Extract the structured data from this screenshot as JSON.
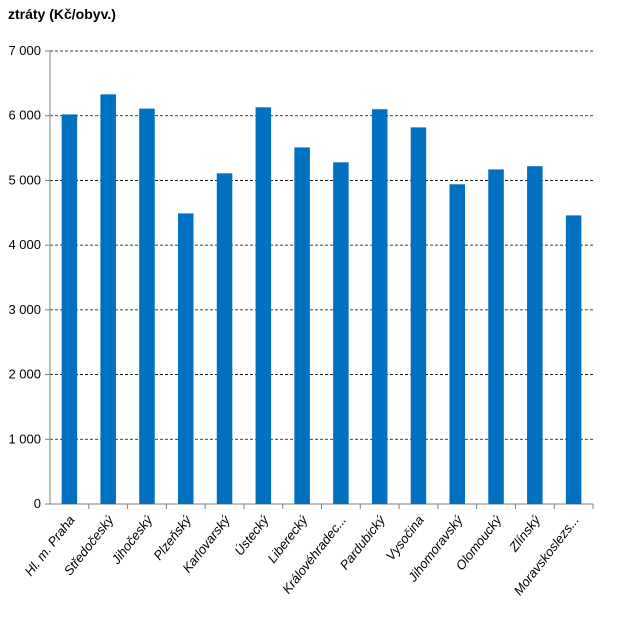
{
  "chart_data": {
    "type": "bar",
    "ylabel": "ztráty (Kč/obyv.)",
    "xlabel": "",
    "categories": [
      "Hl. m. Praha",
      "Středočeský",
      "Jihočeský",
      "Plzeňský",
      "Karlovarský",
      "Ústecký",
      "Liberecký",
      "Královéhradec...",
      "Pardubický",
      "Vysočina",
      "Jihomoravský",
      "Olomoucký",
      "Zlínský",
      "Moravskoslezs..."
    ],
    "values": [
      6020,
      6330,
      6110,
      4490,
      5110,
      6130,
      5510,
      5280,
      6100,
      5820,
      4940,
      5170,
      5220,
      4460
    ],
    "ylim": [
      0,
      7000
    ],
    "yticks": [
      0,
      1000,
      2000,
      3000,
      4000,
      5000,
      6000,
      7000
    ],
    "ytick_labels": [
      "0",
      "1 000",
      "2 000",
      "3 000",
      "4 000",
      "5 000",
      "6 000",
      "7 000"
    ],
    "grid": true,
    "legend": "none",
    "bar_color": "#0070C0"
  }
}
